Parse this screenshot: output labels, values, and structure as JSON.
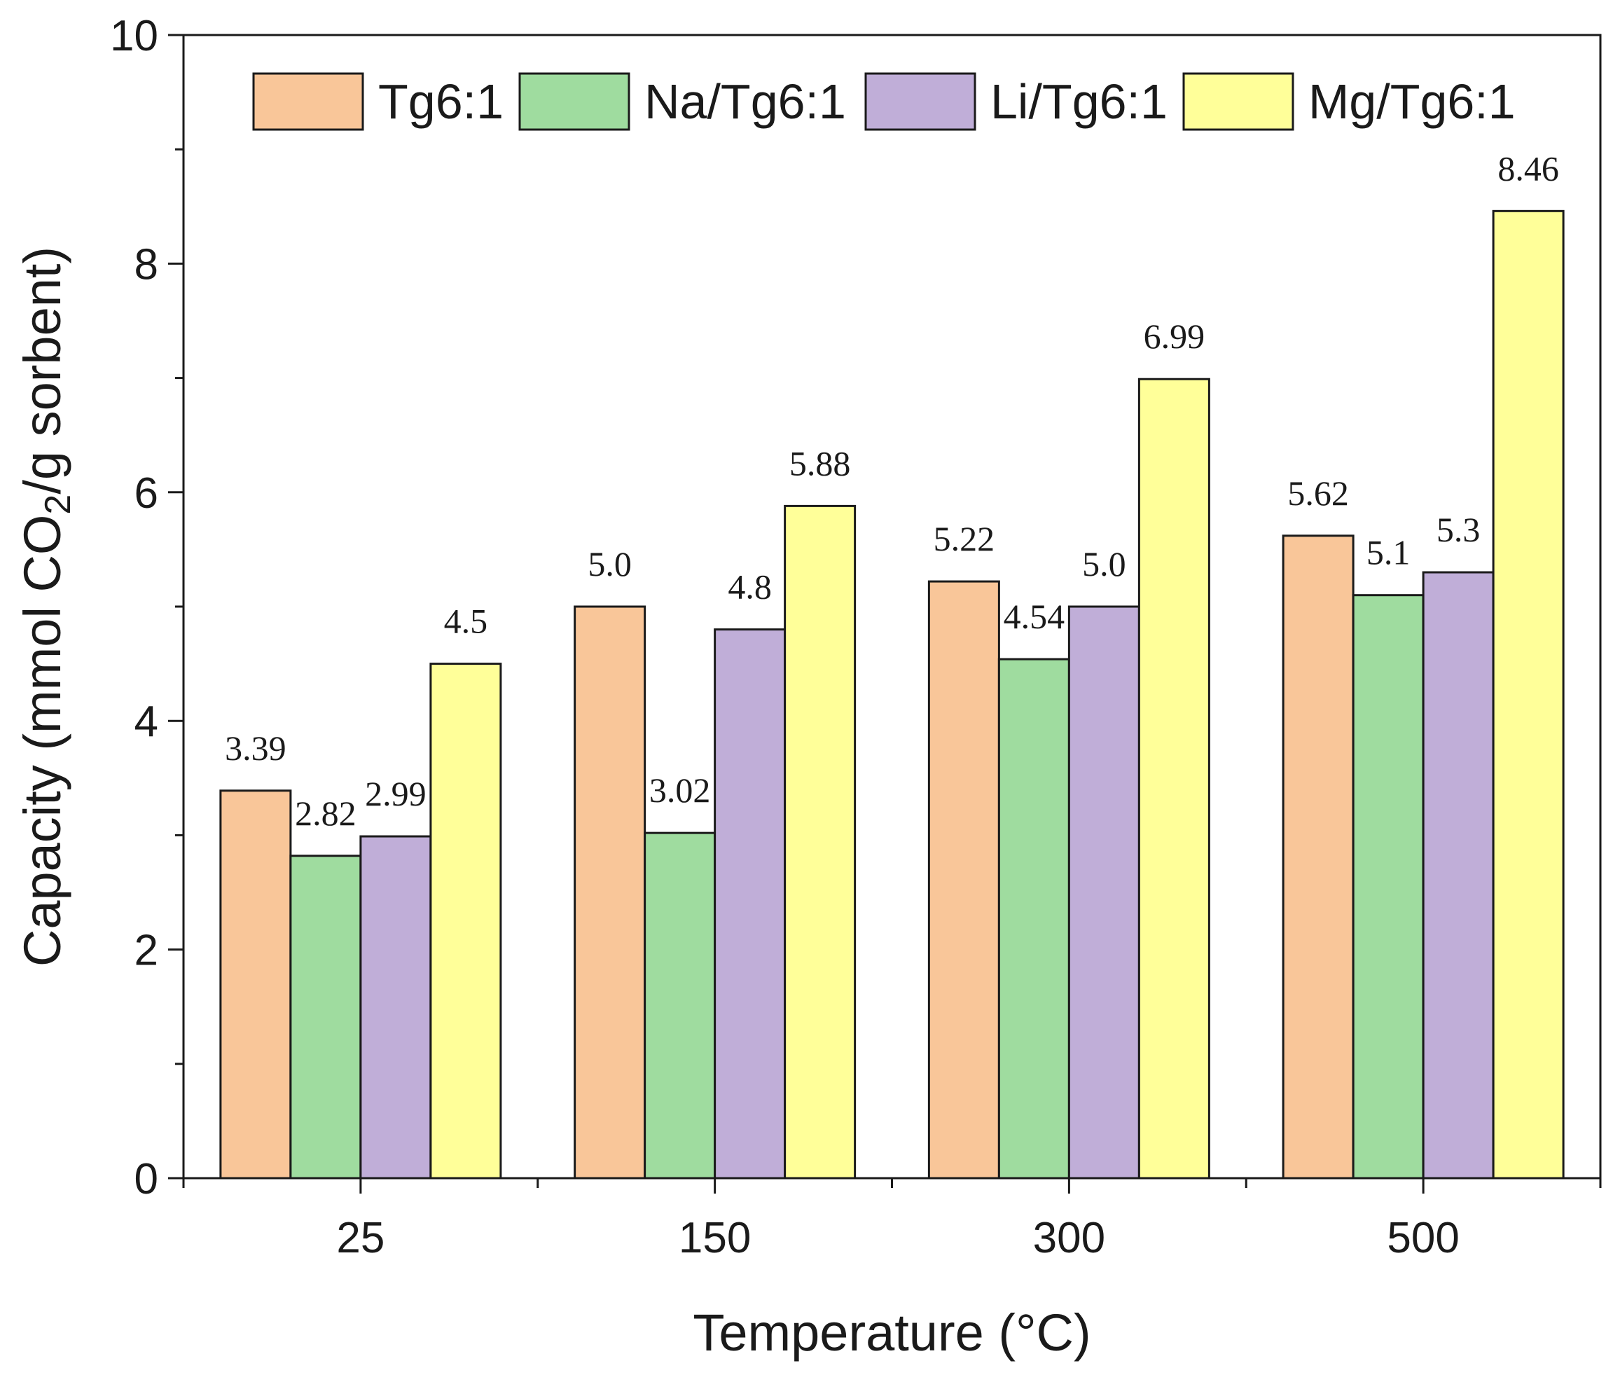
{
  "chart_data": {
    "type": "bar",
    "categories": [
      "25",
      "150",
      "300",
      "500"
    ],
    "series": [
      {
        "name": "Tg6:1",
        "color": "#f9c699",
        "values": [
          3.39,
          5.0,
          5.22,
          5.62
        ],
        "labels": [
          "3.39",
          "5.0",
          "5.22",
          "5.62"
        ]
      },
      {
        "name": "Na/Tg6:1",
        "color": "#9fdc9f",
        "values": [
          2.82,
          3.02,
          4.54,
          5.1
        ],
        "labels": [
          "2.82",
          "3.02",
          "4.54",
          "5.1"
        ]
      },
      {
        "name": "Li/Tg6:1",
        "color": "#c0aed8",
        "values": [
          2.99,
          4.8,
          5.0,
          5.3
        ],
        "labels": [
          "2.99",
          "4.8",
          "5.0",
          "5.3"
        ]
      },
      {
        "name": "Mg/Tg6:1",
        "color": "#ffff99",
        "values": [
          4.5,
          5.88,
          6.99,
          8.46
        ],
        "labels": [
          "4.5",
          "5.88",
          "6.99",
          "8.46"
        ]
      }
    ],
    "title": "",
    "xlabel": "Temperature (°C)",
    "ylabel": "Capacity (mmol CO2/g sorbent)",
    "ylabel_parts": {
      "pre": "Capacity (mmol CO",
      "sub": "2",
      "post": "/g sorbent)"
    },
    "ylim": [
      0,
      10
    ],
    "yticks": [
      0,
      2,
      4,
      6,
      8,
      10
    ],
    "ytick_labels": [
      "0",
      "2",
      "4",
      "6",
      "8",
      "10"
    ],
    "legend_position": "top",
    "grid": false
  }
}
